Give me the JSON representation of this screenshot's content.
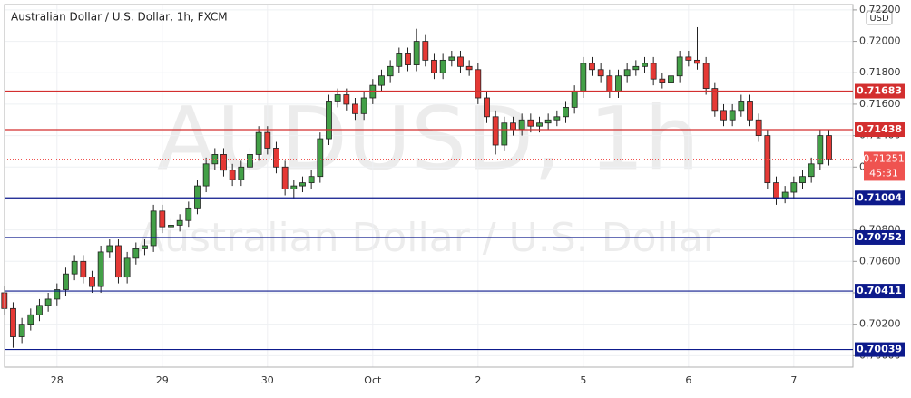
{
  "chart_data": {
    "type": "candlestick",
    "title": "Australian Dollar / U.S. Dollar, 1h, FXCM",
    "watermark": "AUDUSD, 1h",
    "watermark_subtitle": "Australian Dollar / U.S. Dollar",
    "currency": "USD",
    "categories": [
      null,
      null,
      null,
      null,
      null,
      null,
      "28",
      null,
      null,
      null,
      null,
      null,
      null,
      null,
      null,
      null,
      null,
      null,
      "29",
      null,
      null,
      null,
      null,
      null,
      null,
      null,
      null,
      null,
      null,
      null,
      "30",
      null,
      null,
      null,
      null,
      null,
      null,
      null,
      null,
      null,
      null,
      null,
      "Oct",
      null,
      null,
      null,
      null,
      null,
      null,
      null,
      null,
      null,
      null,
      null,
      "2",
      null,
      null,
      null,
      null,
      null,
      null,
      null,
      null,
      null,
      null,
      null,
      "5",
      null,
      null,
      null,
      null,
      null,
      null,
      null,
      null,
      null,
      null,
      null,
      "6",
      null,
      null,
      null,
      null,
      null,
      null,
      null,
      null,
      null,
      null,
      null,
      "7",
      null,
      null,
      null,
      null
    ],
    "open": [
      0.704,
      0.703,
      0.7012,
      0.702,
      0.7026,
      0.7032,
      0.7036,
      0.7042,
      0.7052,
      0.706,
      0.705,
      0.7044,
      0.7066,
      0.707,
      0.705,
      0.7062,
      0.7068,
      0.707,
      0.7092,
      0.7082,
      0.7083,
      0.7086,
      0.7094,
      0.7108,
      0.7122,
      0.7128,
      0.7118,
      0.7112,
      0.712,
      0.7128,
      0.7142,
      0.7132,
      0.712,
      0.7106,
      0.7108,
      0.711,
      0.7114,
      0.7138,
      0.7162,
      0.7166,
      0.716,
      0.7154,
      0.7164,
      0.7172,
      0.7178,
      0.7184,
      0.7192,
      0.7185,
      0.72,
      0.7188,
      0.718,
      0.7188,
      0.719,
      0.7184,
      0.7182,
      0.7164,
      0.7152,
      0.7134,
      0.7148,
      0.7144,
      0.715,
      0.7146,
      0.7148,
      0.715,
      0.7152,
      0.7158,
      0.7168,
      0.7186,
      0.7182,
      0.7178,
      0.7168,
      0.7178,
      0.7182,
      0.7184,
      0.7186,
      0.7176,
      0.7174,
      0.7178,
      0.719,
      0.7188,
      0.7186,
      0.717,
      0.7156,
      0.715,
      0.7156,
      0.7162,
      0.715,
      0.714,
      0.711,
      0.71,
      0.7104,
      0.711,
      0.7114,
      0.7122,
      0.714
    ],
    "high": [
      0.7044,
      0.7034,
      0.7024,
      0.703,
      0.7036,
      0.704,
      0.7046,
      0.7056,
      0.7064,
      0.7064,
      0.7054,
      0.707,
      0.7074,
      0.7074,
      0.7066,
      0.7072,
      0.7074,
      0.7096,
      0.7096,
      0.7087,
      0.709,
      0.7098,
      0.7112,
      0.7126,
      0.7132,
      0.7132,
      0.7122,
      0.7124,
      0.7132,
      0.7146,
      0.7146,
      0.7136,
      0.7124,
      0.7112,
      0.7114,
      0.7118,
      0.7142,
      0.7166,
      0.717,
      0.717,
      0.7164,
      0.7168,
      0.7176,
      0.7182,
      0.7188,
      0.7196,
      0.7196,
      0.7208,
      0.7204,
      0.7192,
      0.7192,
      0.7194,
      0.7194,
      0.7188,
      0.7186,
      0.7168,
      0.7156,
      0.7152,
      0.7152,
      0.7154,
      0.7154,
      0.7152,
      0.7154,
      0.7156,
      0.7162,
      0.7172,
      0.719,
      0.719,
      0.7186,
      0.7182,
      0.7182,
      0.7186,
      0.7188,
      0.719,
      0.719,
      0.718,
      0.7182,
      0.7194,
      0.7194,
      0.7209,
      0.719,
      0.7174,
      0.716,
      0.716,
      0.7166,
      0.7166,
      0.7154,
      0.7144,
      0.7114,
      0.7108,
      0.7114,
      0.7118,
      0.7126,
      0.7144,
      0.7144
    ],
    "low": [
      0.7026,
      0.7005,
      0.7008,
      0.7016,
      0.7022,
      0.7028,
      0.7032,
      0.7038,
      0.7048,
      0.7046,
      0.704,
      0.704,
      0.7062,
      0.7046,
      0.7046,
      0.7058,
      0.7064,
      0.7066,
      0.7078,
      0.7078,
      0.7079,
      0.7082,
      0.709,
      0.7104,
      0.7118,
      0.7114,
      0.7108,
      0.7108,
      0.7116,
      0.7124,
      0.7128,
      0.7116,
      0.7102,
      0.71,
      0.7104,
      0.7106,
      0.711,
      0.7134,
      0.7158,
      0.7156,
      0.715,
      0.715,
      0.716,
      0.7168,
      0.7174,
      0.718,
      0.7181,
      0.7181,
      0.7184,
      0.7176,
      0.7176,
      0.7184,
      0.718,
      0.7178,
      0.716,
      0.7148,
      0.7128,
      0.713,
      0.714,
      0.714,
      0.7142,
      0.7142,
      0.7144,
      0.7146,
      0.7148,
      0.7154,
      0.7164,
      0.7178,
      0.7174,
      0.7164,
      0.7164,
      0.7174,
      0.7178,
      0.718,
      0.7172,
      0.717,
      0.717,
      0.7174,
      0.7184,
      0.7182,
      0.7166,
      0.7152,
      0.7146,
      0.7146,
      0.7152,
      0.7146,
      0.7136,
      0.7106,
      0.7096,
      0.7097,
      0.71,
      0.7106,
      0.711,
      0.7118,
      0.7121
    ],
    "close": [
      0.703,
      0.7012,
      0.702,
      0.7026,
      0.7032,
      0.7036,
      0.7042,
      0.7052,
      0.706,
      0.705,
      0.7044,
      0.7066,
      0.707,
      0.705,
      0.7062,
      0.7068,
      0.707,
      0.7092,
      0.7082,
      0.7083,
      0.7086,
      0.7094,
      0.7108,
      0.7122,
      0.7128,
      0.7118,
      0.7112,
      0.712,
      0.7128,
      0.7142,
      0.7132,
      0.712,
      0.7106,
      0.7108,
      0.711,
      0.7114,
      0.7138,
      0.7162,
      0.7166,
      0.716,
      0.7154,
      0.7164,
      0.7172,
      0.7178,
      0.7184,
      0.7192,
      0.7185,
      0.72,
      0.7188,
      0.718,
      0.7188,
      0.719,
      0.7184,
      0.7182,
      0.7164,
      0.7152,
      0.7134,
      0.7148,
      0.7144,
      0.715,
      0.7146,
      0.7148,
      0.715,
      0.7152,
      0.7158,
      0.7168,
      0.7186,
      0.7182,
      0.7178,
      0.7168,
      0.7178,
      0.7182,
      0.7184,
      0.7186,
      0.7176,
      0.7174,
      0.7178,
      0.719,
      0.7188,
      0.7186,
      0.717,
      0.7156,
      0.715,
      0.7156,
      0.7162,
      0.715,
      0.714,
      0.711,
      0.71,
      0.7104,
      0.711,
      0.7114,
      0.7122,
      0.714,
      0.71251
    ],
    "up_color": "#43a047",
    "down_color": "#e53935",
    "ylim": [
      0.69927,
      0.72234
    ],
    "yticks": [
      {
        "value": 0.7,
        "label": "0.70000"
      },
      {
        "value": 0.702,
        "label": "0.70200"
      },
      {
        "value": 0.704,
        "label": "0.70400"
      },
      {
        "value": 0.706,
        "label": "0.70600"
      },
      {
        "value": 0.708,
        "label": "0.70800"
      },
      {
        "value": 0.71,
        "label": "0.71000"
      },
      {
        "value": 0.712,
        "label": "0.71200"
      },
      {
        "value": 0.714,
        "label": "0.71400"
      },
      {
        "value": 0.716,
        "label": "0.71600"
      },
      {
        "value": 0.718,
        "label": "0.71800"
      },
      {
        "value": 0.72,
        "label": "0.72000"
      },
      {
        "value": 0.722,
        "label": "0.72200"
      }
    ],
    "levels": [
      {
        "value": 0.71683,
        "color": "#d32f2f"
      },
      {
        "value": 0.71438,
        "color": "#d32f2f"
      },
      {
        "value": 0.71004,
        "color": "#0d1a8c"
      },
      {
        "value": 0.70752,
        "color": "#0d1a8c"
      },
      {
        "value": 0.70411,
        "color": "#0d1a8c"
      },
      {
        "value": 0.70039,
        "color": "#0d1a8c"
      }
    ],
    "last_price": 0.71251,
    "last_price_color": "#ef5350",
    "countdown": "45:31"
  }
}
